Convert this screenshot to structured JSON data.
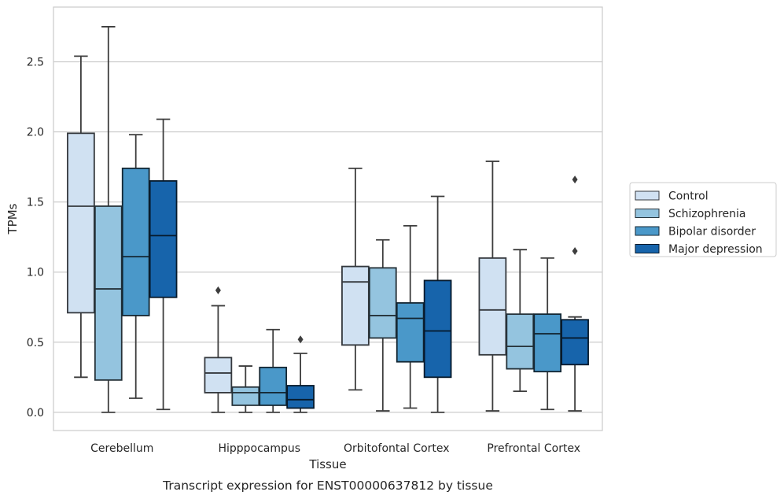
{
  "chart_data": {
    "type": "boxplot",
    "title": "",
    "caption": "Transcript expression for ENST00000637812 by tissue",
    "xlabel": "Tissue",
    "ylabel": "TPMs",
    "ylim": [
      -0.13,
      2.89
    ],
    "yticks": [
      "0.0",
      "0.5",
      "1.0",
      "1.5",
      "2.0",
      "2.5"
    ],
    "ytick_values": [
      0.0,
      0.5,
      1.0,
      1.5,
      2.0,
      2.5
    ],
    "grid": "horizontal",
    "legend_position": "right",
    "categories": [
      "Cerebellum",
      "Hipppocampus",
      "Orbitofontal Cortex",
      "Prefrontal Cortex"
    ],
    "series": [
      {
        "name": "Control",
        "color": "#d0e1f2",
        "boxes": [
          {
            "whislo": 0.25,
            "q1": 0.71,
            "med": 1.47,
            "q3": 1.99,
            "whishi": 2.54,
            "fliers": []
          },
          {
            "whislo": 0.0,
            "q1": 0.14,
            "med": 0.28,
            "q3": 0.39,
            "whishi": 0.76,
            "fliers": [
              0.87
            ]
          },
          {
            "whislo": 0.16,
            "q1": 0.48,
            "med": 0.93,
            "q3": 1.04,
            "whishi": 1.74,
            "fliers": []
          },
          {
            "whislo": 0.01,
            "q1": 0.41,
            "med": 0.73,
            "q3": 1.1,
            "whishi": 1.79,
            "fliers": []
          }
        ]
      },
      {
        "name": "Schizophrenia",
        "color": "#94c4df",
        "boxes": [
          {
            "whislo": 0.0,
            "q1": 0.23,
            "med": 0.88,
            "q3": 1.47,
            "whishi": 2.75,
            "fliers": []
          },
          {
            "whislo": 0.0,
            "q1": 0.05,
            "med": 0.14,
            "q3": 0.18,
            "whishi": 0.33,
            "fliers": []
          },
          {
            "whislo": 0.01,
            "q1": 0.53,
            "med": 0.69,
            "q3": 1.03,
            "whishi": 1.23,
            "fliers": []
          },
          {
            "whislo": 0.15,
            "q1": 0.31,
            "med": 0.47,
            "q3": 0.7,
            "whishi": 1.16,
            "fliers": []
          }
        ]
      },
      {
        "name": "Bipolar disorder",
        "color": "#4a98c9",
        "boxes": [
          {
            "whislo": 0.1,
            "q1": 0.69,
            "med": 1.11,
            "q3": 1.74,
            "whishi": 1.98,
            "fliers": []
          },
          {
            "whislo": 0.0,
            "q1": 0.05,
            "med": 0.14,
            "q3": 0.32,
            "whishi": 0.59,
            "fliers": []
          },
          {
            "whislo": 0.03,
            "q1": 0.36,
            "med": 0.67,
            "q3": 0.78,
            "whishi": 1.33,
            "fliers": []
          },
          {
            "whislo": 0.02,
            "q1": 0.29,
            "med": 0.56,
            "q3": 0.7,
            "whishi": 1.1,
            "fliers": []
          }
        ]
      },
      {
        "name": "Major depression",
        "color": "#1764ab",
        "boxes": [
          {
            "whislo": 0.02,
            "q1": 0.82,
            "med": 1.26,
            "q3": 1.65,
            "whishi": 2.09,
            "fliers": []
          },
          {
            "whislo": 0.0,
            "q1": 0.03,
            "med": 0.09,
            "q3": 0.19,
            "whishi": 0.42,
            "fliers": [
              0.52
            ]
          },
          {
            "whislo": 0.0,
            "q1": 0.25,
            "med": 0.58,
            "q3": 0.94,
            "whishi": 1.54,
            "fliers": []
          },
          {
            "whislo": 0.01,
            "q1": 0.34,
            "med": 0.53,
            "q3": 0.66,
            "whishi": 0.68,
            "fliers": [
              1.15,
              1.66
            ]
          }
        ]
      }
    ]
  }
}
